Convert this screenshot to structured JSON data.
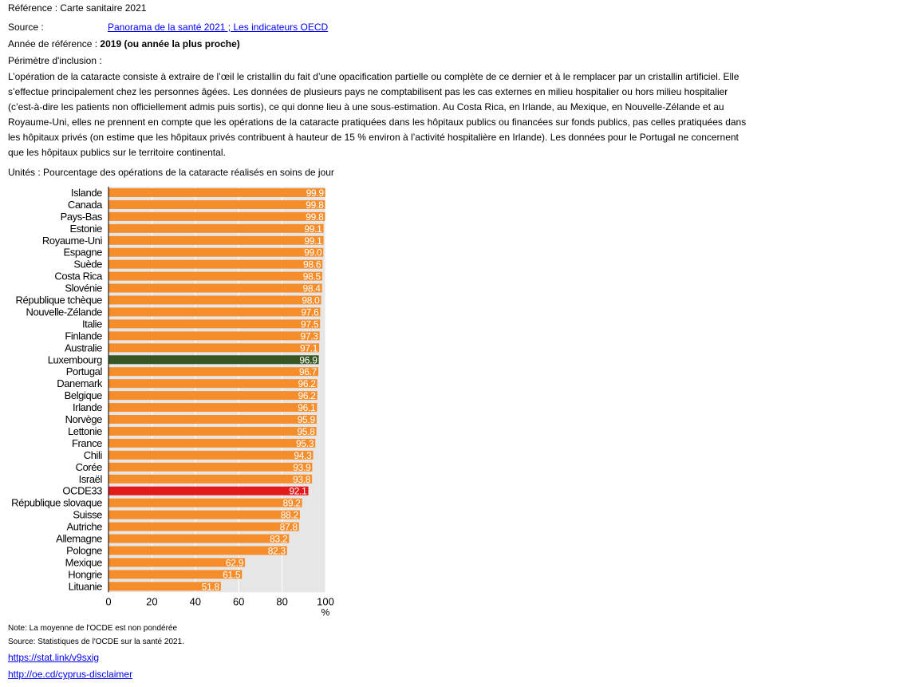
{
  "header": {
    "reference": "Référence : Carte sanitaire 2021",
    "source_label": "Source :",
    "source_link": "Panorama de la santé 2021 ; Les indicateurs OECD ",
    "year_label": "Année de référence : ",
    "year_value": "2019 (ou année la plus proche)",
    "scope_label": "Périmètre d'inclusion :",
    "scope_text": "L’opération de la cataracte consiste à extraire de l’œil le cristallin du fait d’une opacification partielle ou complète de ce dernier et à le remplacer par un cristallin artificiel. Elle s’effectue principalement chez les personnes âgées. Les données de plusieurs pays ne comptabilisent pas les cas externes en milieu hospitalier ou hors milieu hospitalier (c’est-à-dire les patients non officiellement admis puis sortis), ce qui donne lieu à une sous-estimation. Au Costa Rica, en Irlande, au Mexique, en Nouvelle-Zélande et au Royaume-Uni, elles ne prennent en compte que les opérations de la cataracte pratiquées dans les hôpitaux publics ou financées sur fonds publics, pas celles pratiquées dans les hôpitaux privés (on estime que les hôpitaux privés contribuent à hauteur de 15 % environ à l’activité hospitalière en Irlande). Les données pour le Portugal ne concernent que les hôpitaux publics sur le territoire continental.",
    "units": "Unités : Pourcentage des opérations de la cataracte réalisés en soins de jour"
  },
  "chart_data": {
    "type": "bar",
    "orientation": "horizontal",
    "categories": [
      "Islande",
      "Canada",
      "Pays-Bas",
      "Estonie",
      "Royaume-Uni",
      "Espagne",
      "Suède",
      "Costa Rica",
      "Slovénie",
      "République tchèque",
      "Nouvelle-Zélande",
      "Italie",
      "Finlande",
      "Australie",
      "Luxembourg",
      "Portugal",
      "Danemark",
      "Belgique",
      "Irlande",
      "Norvège",
      "Lettonie",
      "France",
      "Chili",
      "Corée",
      "Israël",
      "OCDE33",
      "République slovaque",
      "Suisse",
      "Autriche",
      "Allemagne",
      "Pologne",
      "Mexique",
      "Hongrie",
      "Lituanie"
    ],
    "values": [
      99.9,
      99.8,
      99.8,
      99.1,
      99.1,
      99.0,
      98.6,
      98.5,
      98.4,
      98.0,
      97.6,
      97.5,
      97.3,
      97.1,
      96.9,
      96.7,
      96.2,
      96.2,
      96.1,
      95.9,
      95.8,
      95.3,
      94.3,
      93.9,
      93.8,
      92.1,
      89.2,
      88.2,
      87.8,
      83.2,
      82.3,
      62.9,
      61.5,
      51.8
    ],
    "value_labels": [
      "99.9",
      "99.8",
      "99.8",
      "99.1",
      "99.1",
      "99.0",
      "98.6",
      "98.5",
      "98.4",
      "98.0",
      "97.6",
      "97.5",
      "97.3",
      "97.1",
      "96.9",
      "96.7",
      "96.2",
      "96.2",
      "96.1",
      "95.9",
      "95.8",
      "95.3",
      "94.3",
      "93.9",
      "93.8",
      "92.1",
      "89.2",
      "88.2",
      "87.8",
      "83.2",
      "82.3",
      "62.9",
      "61.5",
      "51.8"
    ],
    "highlight": {
      "Luxembourg": "#375623",
      "OCDE33": "#e31a1c"
    },
    "bar_color": "#f58d2b",
    "background_color": "#e6e6e6",
    "xlim": [
      0,
      100
    ],
    "xticks": [
      "0",
      "20",
      "40",
      "60",
      "80",
      "100"
    ],
    "xunit": "%",
    "grid": true
  },
  "footer": {
    "note1": "Note: La moyenne de l'OCDE est non pondérée",
    "note2": "Source: Statistiques de l'OCDE sur la santé 2021.",
    "link1": "https://stat.link/v9sxig",
    "link2": "http://oe.cd/cyprus-disclaimer"
  }
}
